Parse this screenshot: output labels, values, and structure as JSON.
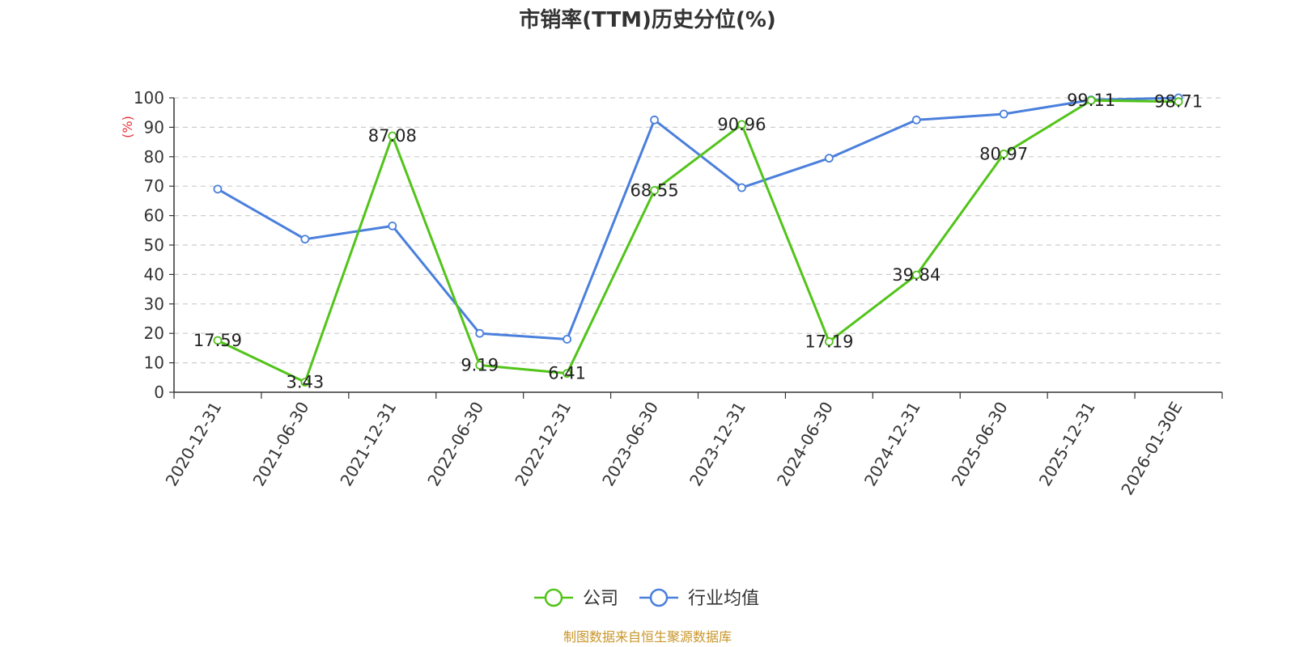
{
  "chart_data": {
    "type": "line",
    "title": "市销率(TTM)历史分位(%)",
    "ylabel": "(%)",
    "ylim": [
      0,
      100
    ],
    "yticks": [
      0,
      10,
      20,
      30,
      40,
      50,
      60,
      70,
      80,
      90,
      100
    ],
    "grid": true,
    "legend_position": "bottom",
    "categories": [
      "2020-12-31",
      "2021-06-30",
      "2021-12-31",
      "2022-06-30",
      "2022-12-31",
      "2023-06-30",
      "2023-12-31",
      "2024-06-30",
      "2024-12-31",
      "2025-06-30",
      "2025-12-31",
      "2026-01-30E"
    ],
    "series": [
      {
        "name": "公司",
        "color": "#52c41a",
        "values": [
          17.59,
          3.43,
          87.08,
          9.19,
          6.41,
          68.55,
          90.96,
          17.19,
          39.84,
          80.97,
          99.11,
          98.71
        ],
        "labels": [
          "17.59",
          "3.43",
          "87.08",
          "9.19",
          "6.41",
          "68.55",
          "90.96",
          "17.19",
          "39.84",
          "80.97",
          "99.11",
          "98.71"
        ]
      },
      {
        "name": "行业均值",
        "color": "#4a7fdc",
        "values": [
          69,
          52,
          56.5,
          20,
          18,
          92.5,
          69.5,
          79.5,
          92.5,
          94.5,
          99.3,
          100
        ]
      }
    ],
    "source": "制图数据来自恒生聚源数据库",
    "source_color": "#c8962a",
    "ylabel_color": "#e8323c"
  }
}
